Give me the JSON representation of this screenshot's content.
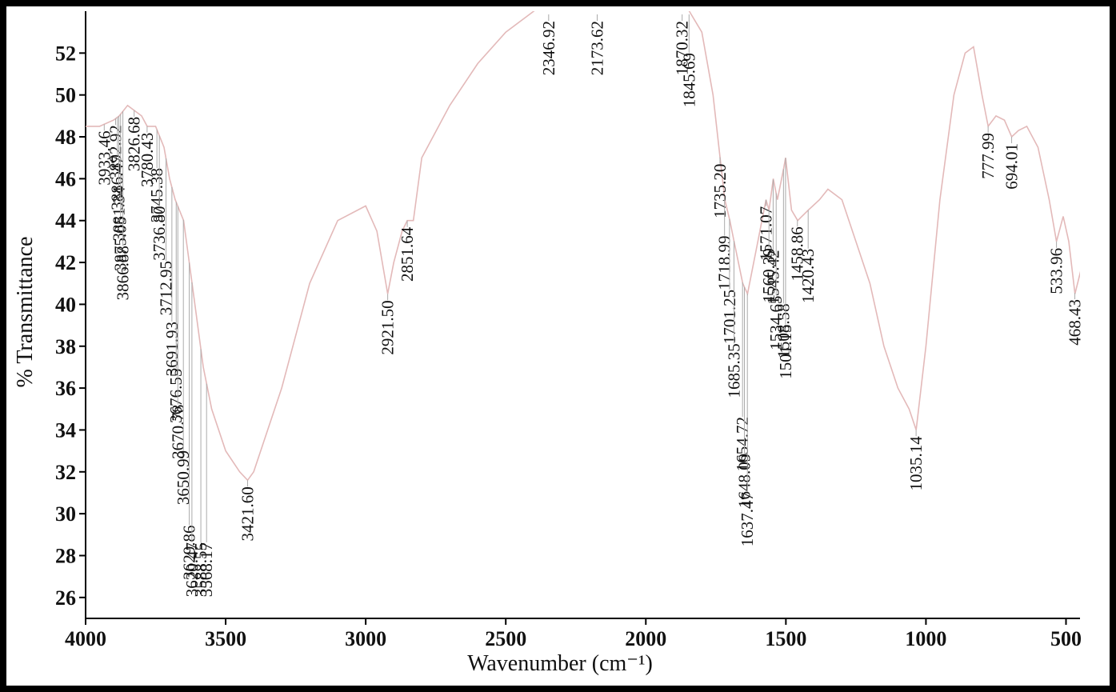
{
  "chart_data": {
    "type": "line",
    "x_label": "Wavenumber (cm⁻¹)",
    "y_label": "% Transmittance",
    "x": [
      4000,
      3950,
      3900,
      3880,
      3850,
      3800,
      3780,
      3750,
      3720,
      3700,
      3680,
      3650,
      3620,
      3600,
      3580,
      3550,
      3500,
      3450,
      3421.6,
      3400,
      3300,
      3200,
      3100,
      3000,
      2960,
      2921.5,
      2900,
      2870,
      2851.64,
      2830,
      2800,
      2700,
      2600,
      2500,
      2400,
      2300,
      2100,
      1900,
      1870,
      1845,
      1800,
      1760,
      1735,
      1718,
      1700,
      1685,
      1654,
      1637,
      1600,
      1571,
      1560,
      1545,
      1530,
      1508,
      1501,
      1480,
      1458,
      1420,
      1380,
      1350,
      1300,
      1250,
      1200,
      1150,
      1100,
      1060,
      1035,
      1000,
      950,
      900,
      860,
      830,
      800,
      778,
      750,
      720,
      694,
      670,
      640,
      600,
      560,
      534,
      510,
      490,
      468,
      440,
      410
    ],
    "values": [
      48.5,
      48.5,
      48.8,
      49,
      49.5,
      49,
      48.5,
      48.5,
      47.5,
      46,
      45,
      44,
      41,
      39,
      37,
      35,
      33,
      32,
      31.6,
      32,
      36,
      41,
      44,
      44.7,
      43.5,
      40.5,
      42,
      43.5,
      44,
      44,
      47,
      49.5,
      51.5,
      53,
      54,
      55,
      55,
      55,
      54.5,
      54,
      53,
      50,
      47,
      45,
      44,
      43,
      41,
      40.5,
      43,
      45,
      44.5,
      46,
      45,
      46.5,
      47,
      44.5,
      44,
      44.5,
      45,
      45.5,
      45,
      43,
      41,
      38,
      36,
      35,
      34,
      38,
      45,
      50,
      52,
      52.3,
      50,
      48.5,
      49,
      48.8,
      48,
      48.3,
      48.5,
      47.5,
      45,
      43,
      44.2,
      43,
      40.5,
      42,
      46.5
    ],
    "color": "#e3b9b9",
    "xlim": [
      4000,
      450
    ],
    "ylim": [
      25,
      54
    ],
    "xticks": [
      4000,
      3500,
      3000,
      2500,
      2000,
      1500,
      1000,
      500
    ],
    "yticks": [
      26,
      28,
      30,
      32,
      34,
      36,
      38,
      40,
      42,
      44,
      46,
      48,
      50,
      52
    ],
    "annotations": [
      {
        "value": 3933.46,
        "label": "3933.46"
      },
      {
        "value": 3892.92,
        "label": "3892.92"
      },
      {
        "value": 3886.47,
        "label": "3886.47"
      },
      {
        "value": 3881.34,
        "label": "3881.34"
      },
      {
        "value": 3875.05,
        "label": "3875.05"
      },
      {
        "value": 3866.88,
        "label": "3866.88"
      },
      {
        "value": 3826.68,
        "label": "3826.68"
      },
      {
        "value": 3780.43,
        "label": "3780.43"
      },
      {
        "value": 3745.38,
        "label": "3745.38"
      },
      {
        "value": 3736.8,
        "label": "3736.80"
      },
      {
        "value": 3712.95,
        "label": "3712.95"
      },
      {
        "value": 3691.93,
        "label": "3691.93"
      },
      {
        "value": 3676.55,
        "label": "3676.55"
      },
      {
        "value": 3670.78,
        "label": "3670.78"
      },
      {
        "value": 3650.99,
        "label": "3650.99"
      },
      {
        "value": 3629.86,
        "label": "3629.86"
      },
      {
        "value": 3620.47,
        "label": "3620.47"
      },
      {
        "value": 3588.55,
        "label": "3588.55"
      },
      {
        "value": 3568.17,
        "label": "3568.17"
      },
      {
        "value": 3421.6,
        "label": "3421.60"
      },
      {
        "value": 2921.5,
        "label": "2921.50"
      },
      {
        "value": 2851.64,
        "label": "2851.64"
      },
      {
        "value": 2346.92,
        "label": "2346.92"
      },
      {
        "value": 2173.62,
        "label": "2173.62"
      },
      {
        "value": 1870.32,
        "label": "1870.32"
      },
      {
        "value": 1845.69,
        "label": "1845.69"
      },
      {
        "value": 1735.2,
        "label": "1735.20"
      },
      {
        "value": 1718.99,
        "label": "1718.99"
      },
      {
        "value": 1701.25,
        "label": "1701.25"
      },
      {
        "value": 1685.35,
        "label": "1685.35"
      },
      {
        "value": 1654.72,
        "label": "1654.72"
      },
      {
        "value": 1648.09,
        "label": "1648.09"
      },
      {
        "value": 1637.47,
        "label": "1637.47"
      },
      {
        "value": 1571.07,
        "label": "1571.07"
      },
      {
        "value": 1560.39,
        "label": "1560.39"
      },
      {
        "value": 1545.42,
        "label": "1545.42"
      },
      {
        "value": 1534.65,
        "label": "1534.65"
      },
      {
        "value": 1508.58,
        "label": "1508.58"
      },
      {
        "value": 1501.15,
        "label": "1501.15"
      },
      {
        "value": 1458.86,
        "label": "1458.86"
      },
      {
        "value": 1420.43,
        "label": "1420.43"
      },
      {
        "value": 1035.14,
        "label": "1035.14"
      },
      {
        "value": 777.99,
        "label": "777.99"
      },
      {
        "value": 694.01,
        "label": "694.01"
      },
      {
        "value": 533.96,
        "label": "533.96"
      },
      {
        "value": 468.43,
        "label": "468.43"
      }
    ]
  }
}
